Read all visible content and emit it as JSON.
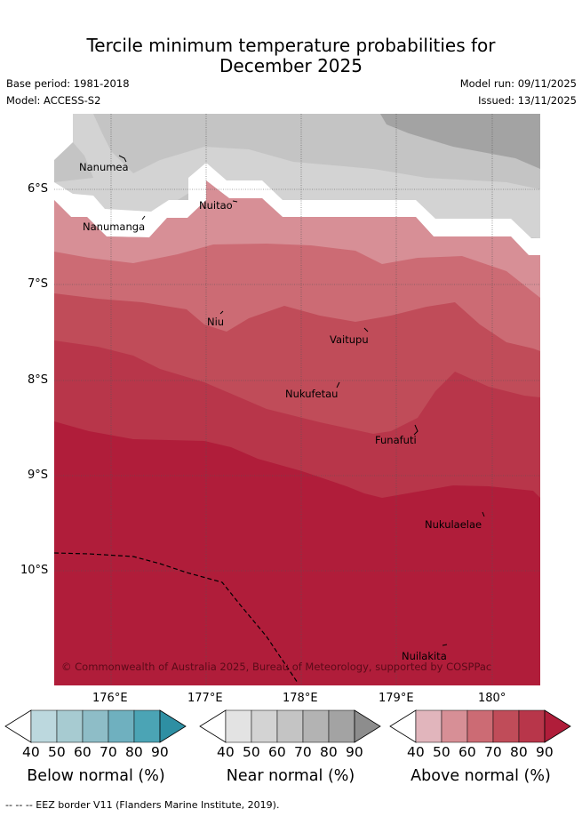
{
  "header": {
    "title_line1": "Tercile minimum temperature probabilities for",
    "title_line2": "December 2025",
    "base_period": "Base period: 1981-2018",
    "model": "Model: ACCESS-S2",
    "model_run": "Model run: 09/11/2025",
    "issued": "Issued: 13/11/2025"
  },
  "map": {
    "lat_labels": [
      "6°S",
      "7°S",
      "8°S",
      "9°S",
      "10°S"
    ],
    "lon_labels": [
      "176°E",
      "177°E",
      "178°E",
      "179°E",
      "180°"
    ],
    "places": [
      {
        "name": "Nanumea"
      },
      {
        "name": "Nuitao"
      },
      {
        "name": "Nanumanga"
      },
      {
        "name": "Niu"
      },
      {
        "name": "Vaitupu"
      },
      {
        "name": "Nukufetau"
      },
      {
        "name": "Funafuti"
      },
      {
        "name": "Nukulaelae"
      },
      {
        "name": "Nuilakita"
      }
    ],
    "copyright": "© Commonwealth of Australia 2025, Bureau of Meteorology, supported by COSPPac"
  },
  "legends": {
    "below": {
      "label": "Below normal (%)",
      "ticks": [
        "40",
        "50",
        "60",
        "70",
        "80",
        "90"
      ],
      "colors": [
        "#ffffff",
        "#bcd8de",
        "#a7cbd1",
        "#8ebdc7",
        "#6fb0bf",
        "#4ba4b5",
        "#2e8fa3"
      ]
    },
    "near": {
      "label": "Near normal (%)",
      "ticks": [
        "40",
        "50",
        "60",
        "70",
        "80",
        "90"
      ],
      "colors": [
        "#ffffff",
        "#e3e3e3",
        "#d3d3d3",
        "#c4c4c4",
        "#b3b3b3",
        "#a3a3a3",
        "#8d8d8d"
      ]
    },
    "above": {
      "label": "Above normal (%)",
      "ticks": [
        "40",
        "50",
        "60",
        "70",
        "80",
        "90"
      ],
      "colors": [
        "#ffffff",
        "#e1b5bc",
        "#d78f96",
        "#cc6b74",
        "#c04c59",
        "#b8364a",
        "#b01d3a"
      ]
    }
  },
  "footer": {
    "eez_note": "-- -- -- EEZ border V11 (Flanders Marine Institute, 2019)."
  }
}
